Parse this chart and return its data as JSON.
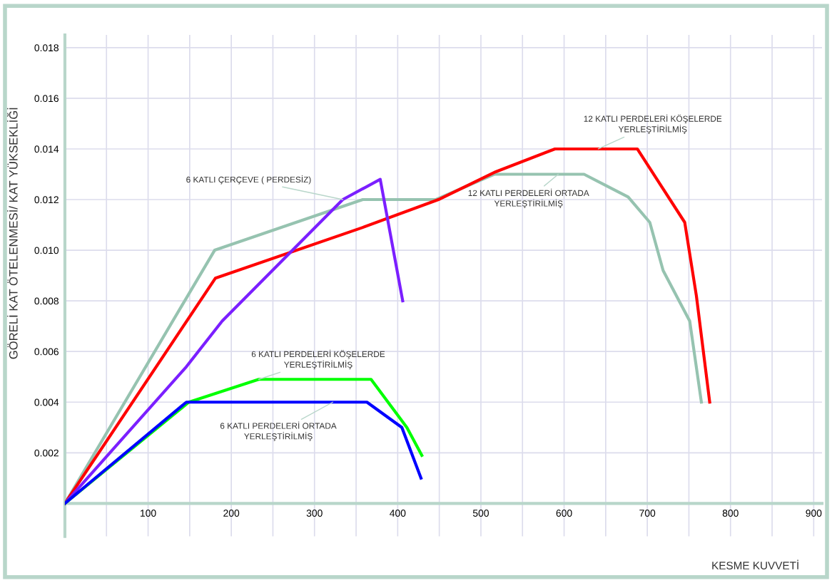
{
  "chart_data": {
    "type": "line",
    "xlabel": "KESME KUVVETİ",
    "ylabel": "GÖRELİ KAT ÖTELENMESİ/ KAT YÜKSEKLİĞİ",
    "series": [
      {
        "color": "#96c3b0",
        "x": [
          0,
          180,
          358,
          446,
          516,
          624,
          677,
          703,
          719,
          751,
          765
        ],
        "values": [
          0,
          0.01,
          0.012,
          0.012,
          0.013,
          0.013,
          0.0121,
          0.0111,
          0.0092,
          0.0072,
          0.004
        ]
      },
      {
        "color": "#ff0000",
        "x": [
          0,
          181,
          358,
          449,
          518,
          589,
          688,
          745,
          759,
          775
        ],
        "values": [
          0,
          0.0089,
          0.0109,
          0.012,
          0.0131,
          0.014,
          0.014,
          0.0111,
          0.0082,
          0.004
        ]
      },
      {
        "color": "#7b1fff",
        "x": [
          0,
          146,
          189,
          334,
          379,
          406
        ],
        "values": [
          0,
          0.0054,
          0.0072,
          0.012,
          0.0128,
          0.008
        ]
      },
      {
        "color": "#00ff00",
        "x": [
          0,
          149,
          233,
          368,
          411,
          429
        ],
        "values": [
          0,
          0.004,
          0.0049,
          0.0049,
          0.003,
          0.0019
        ]
      },
      {
        "color": "#0000ff",
        "x": [
          0,
          146,
          363,
          405,
          428
        ],
        "values": [
          0,
          0.004,
          0.004,
          0.003,
          0.001
        ]
      }
    ],
    "annotations": [
      {
        "text": "6 KATLI ÇERÇEVE ( PERDESİZ)",
        "x": 334,
        "y": 0.012
      },
      {
        "text": "6 KATLI PERDELERİ KÖŞELERDE\nYERLEŞTİRİLMİŞ",
        "x": 233,
        "y": 0.0049
      },
      {
        "text": "6 KATLI PERDELERİ ORTADA\nYERLEŞTİRİLMİŞ",
        "x": 322,
        "y": 0.004
      },
      {
        "text": "12 KATLI PERDELERİ KÖŞELERDE\nYERLEŞTİRİLMİŞ",
        "x": 641,
        "y": 0.014
      },
      {
        "text": "12 KATLI PERDELERİ ORTADA\nYERLEŞTİRİLMİŞ",
        "x": 593,
        "y": 0.013
      }
    ],
    "xlim": [
      0,
      910
    ],
    "ylim": [
      -0.0013,
      0.0185
    ],
    "xticks": [
      {
        "value": 50,
        "label": null
      },
      100,
      {
        "value": 150,
        "label": null
      },
      200,
      {
        "value": 250,
        "label": null
      },
      300,
      {
        "value": 350,
        "label": null
      },
      400,
      {
        "value": 450,
        "label": null
      },
      500,
      {
        "value": 550,
        "label": null
      },
      600,
      {
        "value": 650,
        "label": null
      },
      700,
      {
        "value": 750,
        "label": null
      },
      800,
      {
        "value": 850,
        "label": null
      },
      900
    ],
    "yticks": [
      0.002,
      0.004,
      0.006,
      0.008,
      {
        "value": 0.01,
        "label": "0.010"
      },
      0.012,
      0.014,
      0.016,
      0.018
    ],
    "grid": true,
    "marker": "none",
    "line_style": "solid",
    "legend": false
  }
}
